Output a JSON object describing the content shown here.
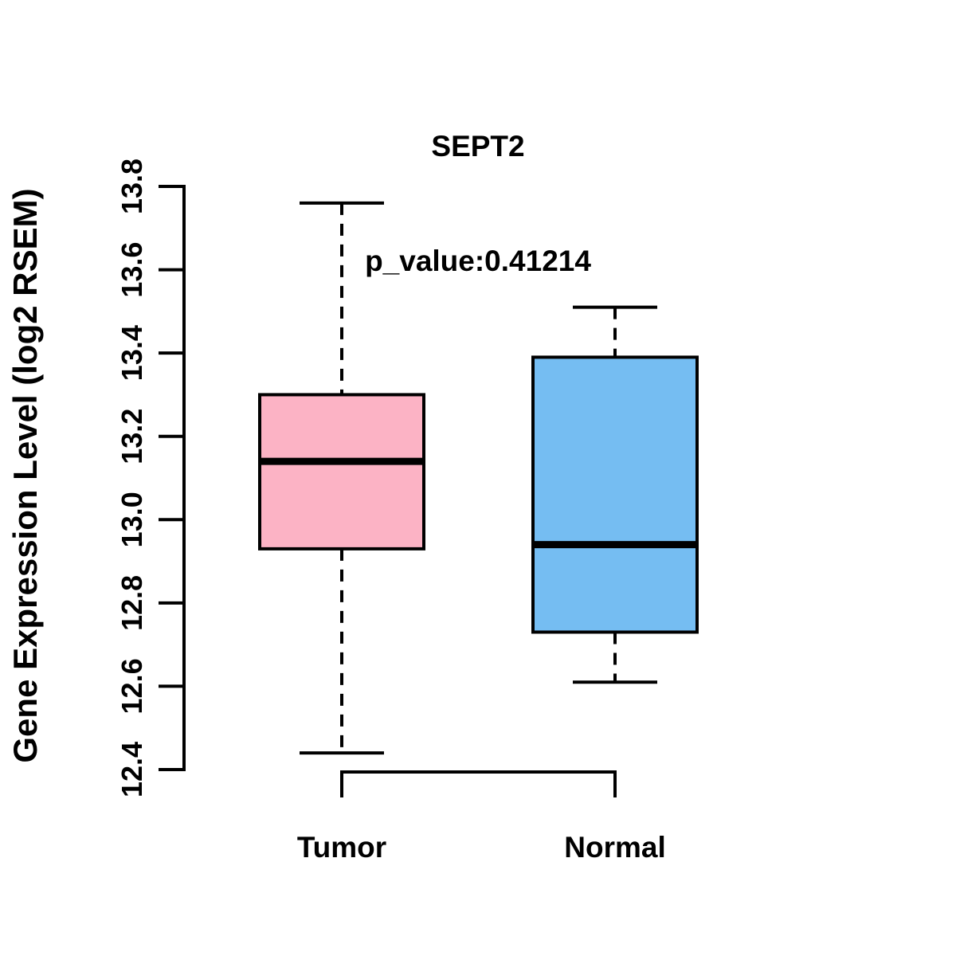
{
  "figure": {
    "background": "#ffffff"
  },
  "chart_data": {
    "type": "boxplot",
    "title": "SEPT2",
    "subtitle": "p_value:0.41214",
    "gene": "SEPT2",
    "p_value": 0.41214,
    "ylabel": "Gene Expression Level (log2 RSEM)",
    "xlabel": "",
    "ylim": [
      12.4,
      13.8
    ],
    "ytick_labels": [
      "13.8",
      "13.6",
      "13.4",
      "13.2",
      "13.0",
      "12.8",
      "12.6",
      "12.4"
    ],
    "ytick_values": [
      13.8,
      13.6,
      13.4,
      13.2,
      13.0,
      12.8,
      12.6,
      12.4
    ],
    "grid": false,
    "legend_position": "none",
    "axis_color": "#000000",
    "whisker_line_style": "dashed",
    "groups": [
      {
        "label": "Tumor",
        "fill": "#FCB3C5",
        "whisker_low": 12.44,
        "q1": 12.93,
        "median": 13.14,
        "q3": 13.3,
        "whisker_high": 13.76
      },
      {
        "label": "Normal",
        "fill": "#75BDF2",
        "whisker_low": 12.61,
        "q1": 12.73,
        "median": 12.94,
        "q3": 13.39,
        "whisker_high": 13.51
      }
    ]
  }
}
